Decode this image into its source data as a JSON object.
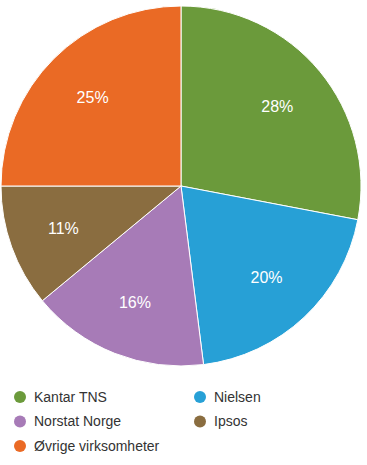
{
  "chart_data": {
    "type": "pie",
    "categories": [
      "Kantar TNS",
      "Nielsen",
      "Norstat Norge",
      "Ipsos",
      "Øvrige virksomheter"
    ],
    "values": [
      28,
      20,
      16,
      11,
      25
    ],
    "value_labels": [
      "28%",
      "20%",
      "16%",
      "11%",
      "25%"
    ],
    "colors": [
      "#6b9a3b",
      "#27a0d6",
      "#a77bb7",
      "#8a6d40",
      "#ea6a25"
    ],
    "data_labels": true,
    "legend": "bottom"
  }
}
